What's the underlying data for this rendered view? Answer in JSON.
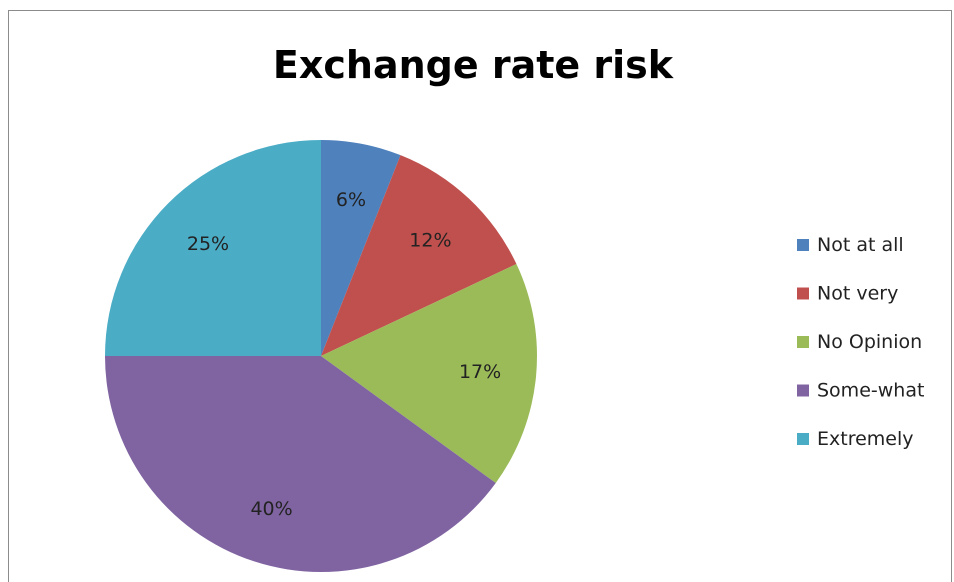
{
  "chart_data": {
    "type": "pie",
    "title": "Exchange rate risk",
    "categories": [
      "Not at all",
      "Not very",
      "No Opinion",
      "Some-what",
      "Extremely"
    ],
    "values": [
      6,
      12,
      17,
      40,
      25
    ],
    "labels": [
      "6%",
      "12%",
      "17%",
      "40%",
      "25%"
    ],
    "colors": [
      "#4f81bd",
      "#c0504d",
      "#9bbb59",
      "#8064a2",
      "#4bacc6"
    ],
    "legend_position": "right",
    "start_angle": "12 o'clock, clockwise"
  }
}
